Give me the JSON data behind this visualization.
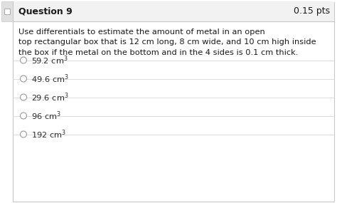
{
  "header_text": "Question 9",
  "points_text": "0.15 pts",
  "question_text_lines": [
    "Use differentials to estimate the amount of metal in an open",
    "top rectangular box that is 12 cm long, 8 cm wide, and 10 cm high inside",
    "the box if the metal on the bottom and in the 4 sides is 0.1 cm thick."
  ],
  "options_base": [
    "59.2 cm",
    "49.6 cm",
    "29.6 cm",
    "96 cm",
    "192 cm"
  ],
  "bg_color": "#ffffff",
  "header_bg_color": "#f2f2f2",
  "border_color": "#c8c8c8",
  "text_color": "#1a1a1a",
  "option_text_color": "#2a2a2a",
  "divider_color": "#d8d8d8",
  "header_font_size": 9.0,
  "question_font_size": 8.2,
  "option_font_size": 8.2,
  "circle_color": "#999999",
  "icon_bg": "#e0e0e0",
  "icon_border": "#b0b0b0"
}
